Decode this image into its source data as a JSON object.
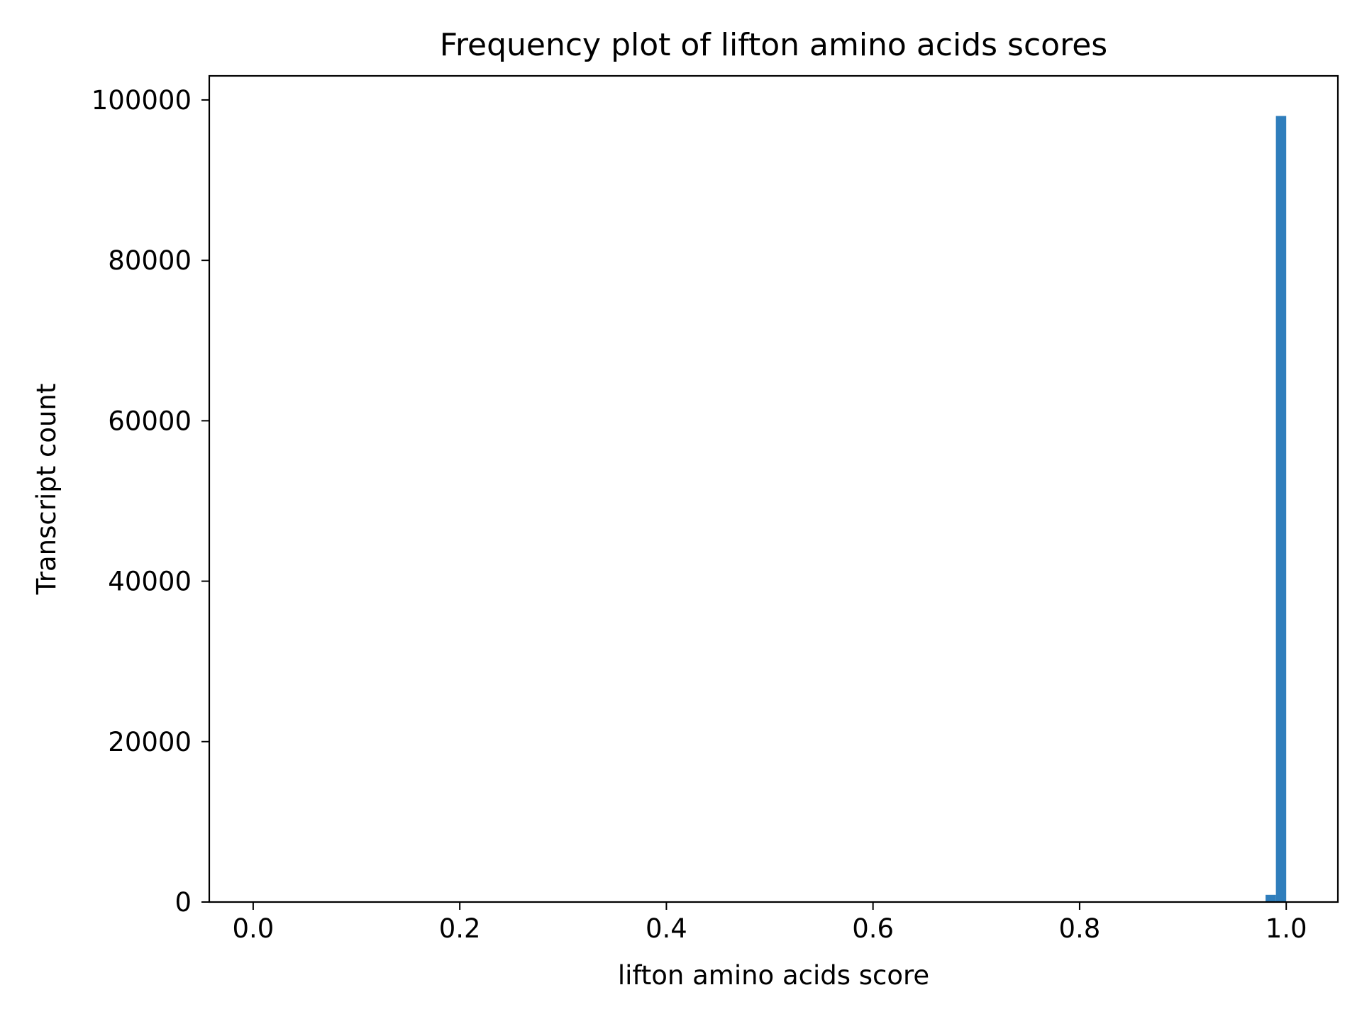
{
  "chart_data": {
    "type": "bar",
    "title": "Frequency plot of lifton amino acids scores",
    "xlabel": "lifton amino acids score",
    "ylabel": "Transcript count",
    "xlim": [
      -0.0425,
      1.05
    ],
    "ylim": [
      0,
      103000
    ],
    "x_ticks": [
      0.0,
      0.2,
      0.4,
      0.6,
      0.8,
      1.0
    ],
    "x_tick_labels": [
      "0.0",
      "0.2",
      "0.4",
      "0.6",
      "0.8",
      "1.0"
    ],
    "y_ticks": [
      0,
      20000,
      40000,
      60000,
      80000,
      100000
    ],
    "y_tick_labels": [
      "0",
      "20000",
      "40000",
      "60000",
      "80000",
      "100000"
    ],
    "bin_width": 0.01,
    "bins": [
      {
        "x0": 0.98,
        "x1": 0.99,
        "count": 900
      },
      {
        "x0": 0.99,
        "x1": 1.0,
        "count": 98000
      }
    ],
    "bar_color": "#2f7ebc",
    "grid": false,
    "legend": "none"
  }
}
